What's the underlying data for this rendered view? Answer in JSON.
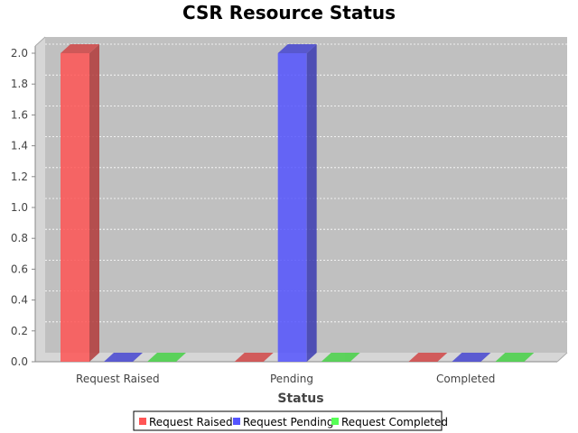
{
  "chart_data": {
    "type": "bar",
    "title": "CSR Resource Status",
    "xlabel": "Status",
    "ylabel": "",
    "categories": [
      "Request Raised",
      "Pending",
      "Completed"
    ],
    "series": [
      {
        "name": "Request Raised",
        "values": [
          2.0,
          0,
          0
        ],
        "color": "#ff5555"
      },
      {
        "name": "Request Pending",
        "values": [
          0,
          2.0,
          0
        ],
        "color": "#5555ff"
      },
      {
        "name": "Request Completed",
        "values": [
          0,
          0,
          0
        ],
        "color": "#55ff55"
      }
    ],
    "ylim": [
      0,
      2.1
    ],
    "yticks": [
      "0.0",
      "0.2",
      "0.4",
      "0.6",
      "0.8",
      "1.0",
      "1.2",
      "1.4",
      "1.6",
      "1.8",
      "2.0"
    ],
    "grid": true,
    "legend_position": "bottom",
    "style": "3d"
  }
}
